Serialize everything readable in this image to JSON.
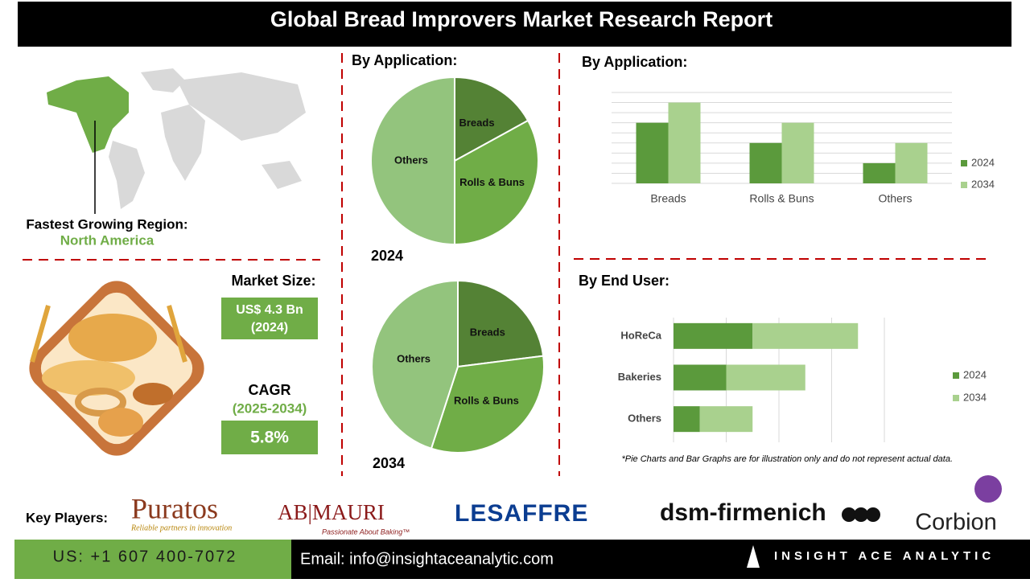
{
  "header": {
    "title": "Global Bread Improvers Market Research Report"
  },
  "region": {
    "label": "Fastest Growing Region:",
    "value": "North America"
  },
  "market": {
    "size_label": "Market Size:",
    "size": "US$ 4.3 Bn",
    "size_year": "(2024)",
    "cagr_label": "CAGR",
    "cagr_period": "(2025-2034)",
    "cagr": "5.8%"
  },
  "chart_data": [
    {
      "type": "pie",
      "title": "By Application:",
      "label": "2024",
      "categories": [
        "Breads",
        "Rolls & Buns",
        "Others"
      ],
      "values": [
        17,
        33,
        50
      ],
      "colors": [
        "#548235",
        "#70ad47",
        "#93c47d"
      ]
    },
    {
      "type": "pie",
      "label": "2034",
      "categories": [
        "Breads",
        "Rolls & Buns",
        "Others"
      ],
      "values": [
        23,
        32,
        45
      ],
      "colors": [
        "#548235",
        "#70ad47",
        "#93c47d"
      ]
    },
    {
      "type": "bar",
      "title": "By Application:",
      "categories": [
        "Breads",
        "Rolls & Buns",
        "Others"
      ],
      "series": [
        {
          "name": "2024",
          "color": "#5b9a3c",
          "values": [
            6,
            4,
            2
          ]
        },
        {
          "name": "2034",
          "color": "#a9d18e",
          "values": [
            8,
            6,
            4
          ]
        }
      ],
      "ylim": [
        0,
        9
      ],
      "yticks": [
        0,
        1,
        2,
        3,
        4,
        5,
        6,
        7,
        8,
        9
      ],
      "grid": true,
      "legend": "right"
    },
    {
      "type": "stacked-hbar",
      "title": "By End User:",
      "categories": [
        "HoReCa",
        "Bakeries",
        "Others"
      ],
      "series": [
        {
          "name": "2024",
          "color": "#5b9a3c",
          "values": [
            1.5,
            1,
            0.5
          ]
        },
        {
          "name": "2034",
          "color": "#a9d18e",
          "values": [
            2,
            1.5,
            1
          ]
        }
      ],
      "xlim": [
        0,
        4
      ],
      "xticks": [
        0,
        1,
        2,
        3,
        4
      ],
      "grid": true,
      "legend": "right"
    }
  ],
  "note": "*Pie Charts and Bar Graphs are for illustration only and do not represent actual data.",
  "key_players": {
    "label": "Key Players:",
    "logos": [
      {
        "name": "Puratos",
        "tagline": "Reliable partners in innovation"
      },
      {
        "name": "AB|MAURI",
        "tagline": "Passionate About Baking™"
      },
      {
        "name": "LESAFFRE"
      },
      {
        "name": "dsm-firmenich"
      },
      {
        "name": "Corbion"
      }
    ]
  },
  "footer": {
    "phone": "US: +1 607 400-7072",
    "email": "Email: info@insightaceanalytic.com",
    "brand": "INSIGHT ACE ANALYTIC"
  }
}
